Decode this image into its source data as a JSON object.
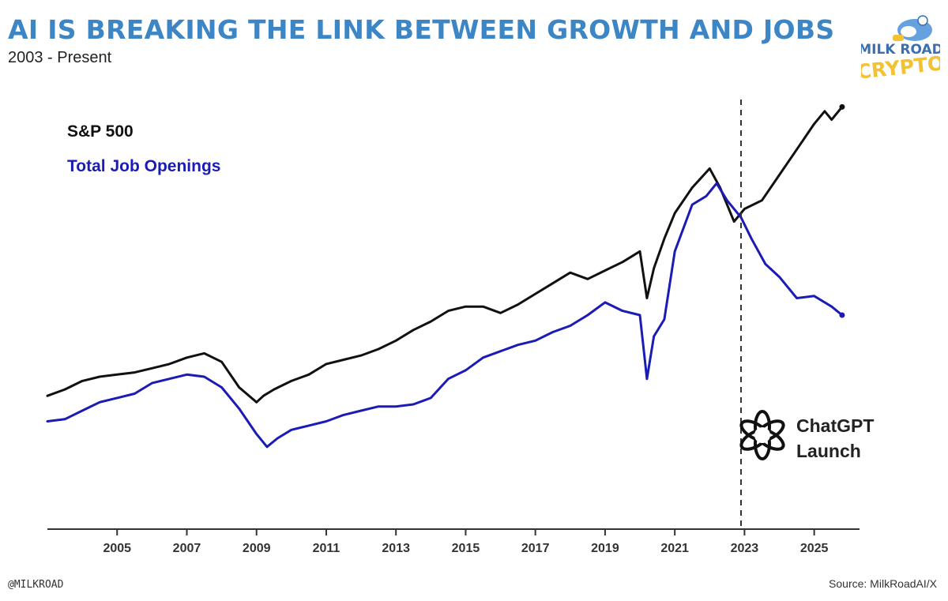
{
  "header": {
    "title": "AI IS BREAKING THE LINK BETWEEN GROWTH AND JOBS",
    "subtitle": "2003 - Present"
  },
  "logo": {
    "line1": "MILK ROAD",
    "line2": "CRYPTO"
  },
  "footer": {
    "handle": "@MILKROAD",
    "source": "Source: MilkRoadAI/X"
  },
  "colors": {
    "title": "#3d86c6",
    "sp500": "#111111",
    "jobs": "#1b1bb5",
    "logo_yellow": "#f2c230"
  },
  "chart_data": {
    "type": "line",
    "title": "AI IS BREAKING THE LINK BETWEEN GROWTH AND JOBS",
    "subtitle": "2003 - Present",
    "xlabel": "",
    "ylabel": "",
    "xlim": [
      2003.0,
      2026.3
    ],
    "ylim": [
      0,
      100
    ],
    "x_ticks": [
      2005,
      2007,
      2009,
      2011,
      2013,
      2015,
      2017,
      2019,
      2021,
      2023,
      2025
    ],
    "x_tick_labels": [
      "2005",
      "2007",
      "2009",
      "2011",
      "2013",
      "2015",
      "2017",
      "2019",
      "2021",
      "2023",
      "2025"
    ],
    "grid": false,
    "legend": "top-left",
    "legend_entries": [
      "S&P 500",
      "Total Job Openings"
    ],
    "series": [
      {
        "name": "S&P 500",
        "color": "#111111",
        "x": [
          2003.0,
          2003.5,
          2004.0,
          2004.5,
          2005.0,
          2005.5,
          2006.0,
          2006.5,
          2007.0,
          2007.5,
          2008.0,
          2008.5,
          2009.0,
          2009.2,
          2009.5,
          2010.0,
          2010.5,
          2011.0,
          2011.5,
          2012.0,
          2012.5,
          2013.0,
          2013.5,
          2014.0,
          2014.5,
          2015.0,
          2015.5,
          2016.0,
          2016.5,
          2017.0,
          2017.5,
          2018.0,
          2018.5,
          2019.0,
          2019.5,
          2020.0,
          2020.2,
          2020.4,
          2020.7,
          2021.0,
          2021.5,
          2022.0,
          2022.3,
          2022.7,
          2023.0,
          2023.5,
          2024.0,
          2024.5,
          2025.0,
          2025.3,
          2025.5,
          2025.8
        ],
        "values": [
          31.0,
          32.5,
          34.5,
          35.5,
          36.0,
          36.5,
          37.5,
          38.5,
          40.0,
          41.0,
          39.0,
          33.0,
          29.5,
          31.0,
          32.5,
          34.5,
          36.0,
          38.5,
          39.5,
          40.5,
          42.0,
          44.0,
          46.5,
          48.5,
          51.0,
          52.0,
          52.0,
          50.5,
          52.5,
          55.0,
          57.5,
          60.0,
          58.5,
          60.5,
          62.5,
          65.0,
          54.0,
          61.0,
          68.0,
          74.0,
          80.0,
          84.5,
          80.0,
          72.0,
          75.0,
          77.0,
          83.0,
          89.0,
          95.0,
          98.0,
          96.0,
          99.0
        ]
      },
      {
        "name": "Total Job Openings",
        "color": "#1b1bb5",
        "x": [
          2003.0,
          2003.5,
          2004.0,
          2004.5,
          2005.0,
          2005.5,
          2006.0,
          2006.5,
          2007.0,
          2007.5,
          2008.0,
          2008.5,
          2009.0,
          2009.3,
          2009.6,
          2010.0,
          2010.5,
          2011.0,
          2011.5,
          2012.0,
          2012.5,
          2013.0,
          2013.5,
          2014.0,
          2014.5,
          2015.0,
          2015.5,
          2016.0,
          2016.5,
          2017.0,
          2017.5,
          2018.0,
          2018.5,
          2019.0,
          2019.5,
          2020.0,
          2020.2,
          2020.4,
          2020.7,
          2021.0,
          2021.5,
          2021.9,
          2022.2,
          2022.5,
          2022.9,
          2023.2,
          2023.6,
          2024.0,
          2024.5,
          2025.0,
          2025.5,
          2025.8
        ],
        "values": [
          25.0,
          25.5,
          27.5,
          29.5,
          30.5,
          31.5,
          34.0,
          35.0,
          36.0,
          35.5,
          33.0,
          28.0,
          22.0,
          19.0,
          21.0,
          23.0,
          24.0,
          25.0,
          26.5,
          27.5,
          28.5,
          28.5,
          29.0,
          30.5,
          35.0,
          37.0,
          40.0,
          41.5,
          43.0,
          44.0,
          46.0,
          47.5,
          50.0,
          53.0,
          51.0,
          50.0,
          35.0,
          45.0,
          49.0,
          65.0,
          76.0,
          78.0,
          81.0,
          77.0,
          73.0,
          68.0,
          62.0,
          59.0,
          54.0,
          54.5,
          52.0,
          50.0
        ]
      }
    ],
    "annotations": [
      {
        "type": "vline",
        "x": 2022.9,
        "style": "dashed"
      },
      {
        "type": "text",
        "lines": [
          "ChatGPT",
          "Launch"
        ],
        "x": 2024.4,
        "y": 25
      }
    ]
  }
}
